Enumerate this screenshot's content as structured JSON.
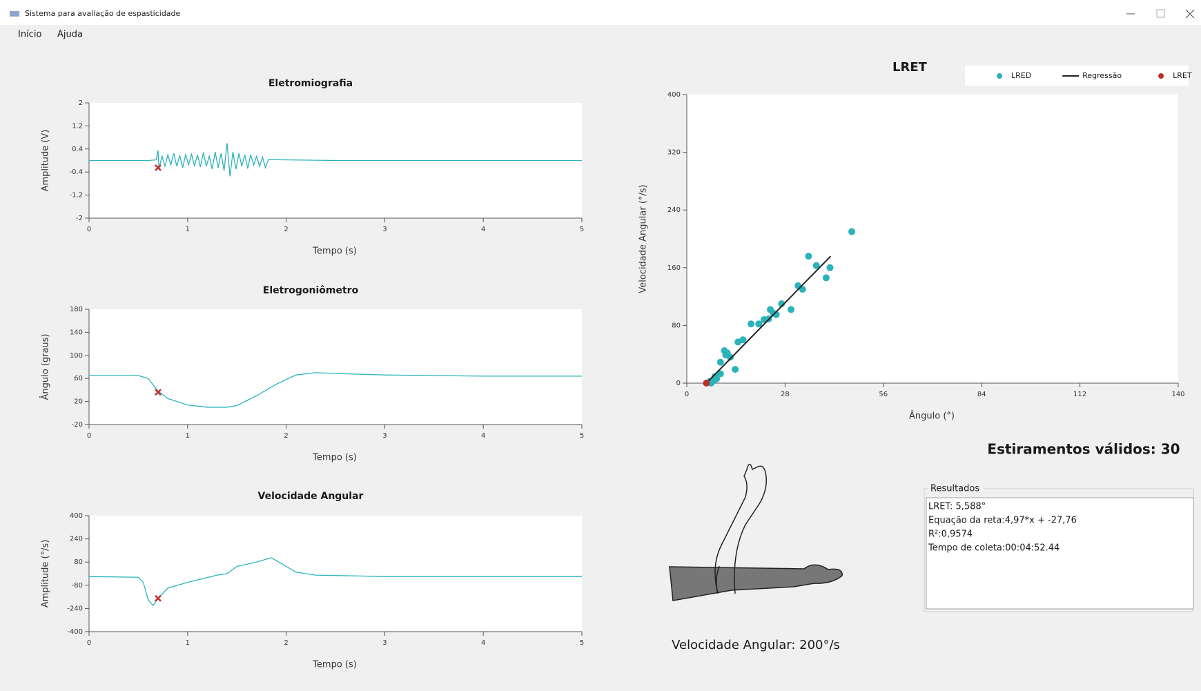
{
  "window": {
    "title": "Sistema para avaliação de espasticidade"
  },
  "menu": [
    "Início",
    "Ajuda"
  ],
  "chart_data": [
    {
      "type": "line",
      "title": "Eletromiografia",
      "xlabel": "Tempo (s)",
      "ylabel": "Amplitude (V)",
      "x": [
        0,
        0.6,
        0.68,
        0.7,
        0.71,
        0.74,
        0.77,
        0.8,
        0.83,
        0.86,
        0.89,
        0.92,
        0.95,
        0.98,
        1.01,
        1.04,
        1.07,
        1.1,
        1.13,
        1.16,
        1.19,
        1.22,
        1.25,
        1.28,
        1.31,
        1.34,
        1.37,
        1.4,
        1.43,
        1.46,
        1.49,
        1.52,
        1.55,
        1.58,
        1.61,
        1.64,
        1.67,
        1.7,
        1.73,
        1.76,
        1.79,
        1.82,
        2.5,
        5
      ],
      "values": [
        0,
        0,
        0.02,
        0.35,
        -0.3,
        0.15,
        -0.2,
        0.2,
        -0.15,
        0.25,
        -0.2,
        0.18,
        -0.25,
        0.2,
        -0.15,
        0.22,
        -0.18,
        0.2,
        -0.22,
        0.28,
        -0.2,
        0.15,
        -0.3,
        0.3,
        -0.25,
        0.25,
        -0.35,
        0.6,
        -0.55,
        0.3,
        -0.3,
        0.25,
        -0.2,
        0.2,
        -0.28,
        0.2,
        -0.15,
        0.15,
        -0.2,
        0.12,
        -0.25,
        0.03,
        0,
        0
      ],
      "color": "#2bb3bb",
      "markers": {
        "x": [
          0.7
        ],
        "values": [
          -0.25
        ],
        "color": "#c0302b"
      },
      "xlim": [
        0,
        5
      ],
      "xticks": [
        0,
        1,
        2,
        3,
        4,
        5
      ],
      "ylim": [
        -2,
        2
      ],
      "yticks": [
        -2,
        -1.2,
        -0.4,
        0.4,
        1.2,
        2
      ]
    },
    {
      "type": "line",
      "title": "Eletrogoniômetro",
      "xlabel": "Tempo (s)",
      "ylabel": "Ângulo (graus)",
      "x": [
        0,
        0.5,
        0.6,
        0.7,
        0.8,
        1,
        1.2,
        1.4,
        1.5,
        1.7,
        1.9,
        2.1,
        2.3,
        2.6,
        3,
        4,
        5
      ],
      "values": [
        65,
        65,
        60,
        38,
        25,
        14,
        10,
        10,
        13,
        30,
        50,
        66,
        70,
        68,
        66,
        64,
        64
      ],
      "color": "#2bb3bb",
      "markers": {
        "x": [
          0.7
        ],
        "values": [
          36
        ],
        "color": "#c0302b"
      },
      "xlim": [
        0,
        5
      ],
      "xticks": [
        0,
        1,
        2,
        3,
        4,
        5
      ],
      "ylim": [
        -20,
        180
      ],
      "yticks": [
        -20,
        20,
        60,
        100,
        140,
        180
      ]
    },
    {
      "type": "line",
      "title": "Velocidade Angular",
      "xlabel": "Tempo (s)",
      "ylabel": "Amplitude (°/s)",
      "x": [
        0,
        0.5,
        0.55,
        0.6,
        0.65,
        0.7,
        0.8,
        1,
        1.3,
        1.4,
        1.5,
        1.7,
        1.85,
        1.95,
        2.1,
        2.3,
        3,
        4,
        5
      ],
      "values": [
        -20,
        -25,
        -60,
        -180,
        -220,
        -170,
        -100,
        -60,
        -10,
        0,
        50,
        80,
        110,
        70,
        10,
        -10,
        -20,
        -20,
        -20
      ],
      "color": "#2bb3bb",
      "markers": {
        "x": [
          0.7
        ],
        "values": [
          -170
        ],
        "color": "#c0302b"
      },
      "xlim": [
        0,
        5
      ],
      "xticks": [
        0,
        1,
        2,
        3,
        4,
        5
      ],
      "ylim": [
        -400,
        400
      ],
      "yticks": [
        -400,
        -240,
        -80,
        80,
        240,
        400
      ]
    },
    {
      "type": "scatter",
      "title": "LRET",
      "xlabel": "Ângulo (°)",
      "ylabel": "Velocidade Angular (°/s)",
      "legend": "top-right",
      "series": [
        {
          "name": "LRED",
          "color": "#2bb3bb",
          "style": "points",
          "x": [
            47,
            34.7,
            36.9,
            40.8,
            39.7,
            31.7,
            29.7,
            23.8,
            25.5,
            23.3,
            24.6,
            20.5,
            18.3,
            14.6,
            10.7,
            11.1,
            12.4,
            9.6,
            13.8,
            9.6,
            7.6,
            6.9,
            8.5,
            11.5,
            22,
            27,
            16,
            33,
            6.5,
            8
          ],
          "values": [
            210,
            176,
            163,
            160,
            146,
            135,
            102,
            102,
            95,
            89,
            97,
            82,
            82,
            57,
            45,
            39,
            36,
            29,
            19,
            13,
            3,
            0,
            6,
            42,
            88,
            110,
            60,
            130,
            2,
            9
          ]
        },
        {
          "name": "Regressão",
          "color": "#222222",
          "style": "line",
          "x": [
            5.588,
            41
          ],
          "values": [
            0,
            176
          ]
        },
        {
          "name": "LRET",
          "color": "#c0302b",
          "style": "points",
          "x": [
            5.588
          ],
          "values": [
            0
          ]
        }
      ],
      "xlim": [
        0,
        140
      ],
      "xticks": [
        0,
        28,
        56,
        84,
        112,
        140
      ],
      "ylim": [
        0,
        400
      ],
      "yticks": [
        0,
        80,
        160,
        240,
        320,
        400
      ]
    }
  ],
  "arm_label": "Velocidade Angular: 200°/s",
  "valid_stretches": "Estiramentos válidos: 30",
  "results": {
    "title": "Resultados",
    "lines": [
      "LRET: 5,588°",
      "Equação da reta:4,97*x + -27,76",
      "R²:0,9574",
      "Tempo de coleta:00:04:52.44"
    ]
  }
}
